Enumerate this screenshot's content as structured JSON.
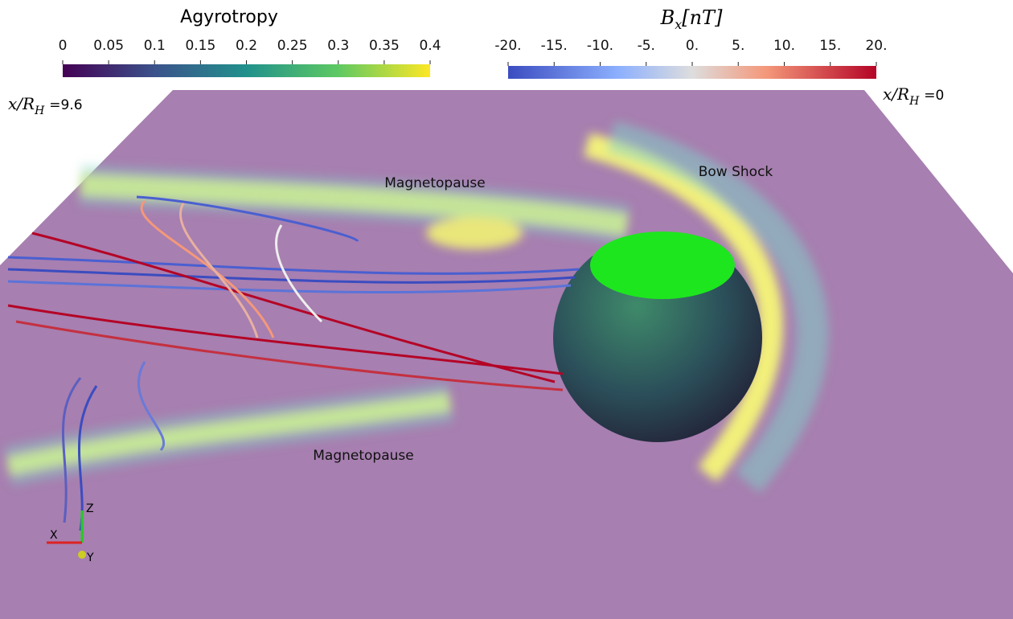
{
  "colorbars": [
    {
      "title": "Agyrotropy",
      "ticks": [
        "0",
        "0.05",
        "0.1",
        "0.15",
        "0.2",
        "0.25",
        "0.3",
        "0.35",
        "0.4"
      ]
    },
    {
      "title": {
        "symbol": "B",
        "subscript": "x",
        "unit": "[nT]"
      },
      "ticks": [
        "-20.",
        "-15.",
        "-10.",
        "-5.",
        "0.",
        "5.",
        "10.",
        "15.",
        "20."
      ]
    }
  ],
  "slice_labels": [
    {
      "symbol": "x/R",
      "subscript": "H",
      "value": "=9.6"
    },
    {
      "symbol": "x/R",
      "subscript": "H",
      "value": "=0"
    }
  ],
  "annotations": [
    "Magnetopause",
    "Bow Shock",
    "Magnetopause"
  ],
  "axes": [
    "Z",
    "X",
    "Y"
  ]
}
